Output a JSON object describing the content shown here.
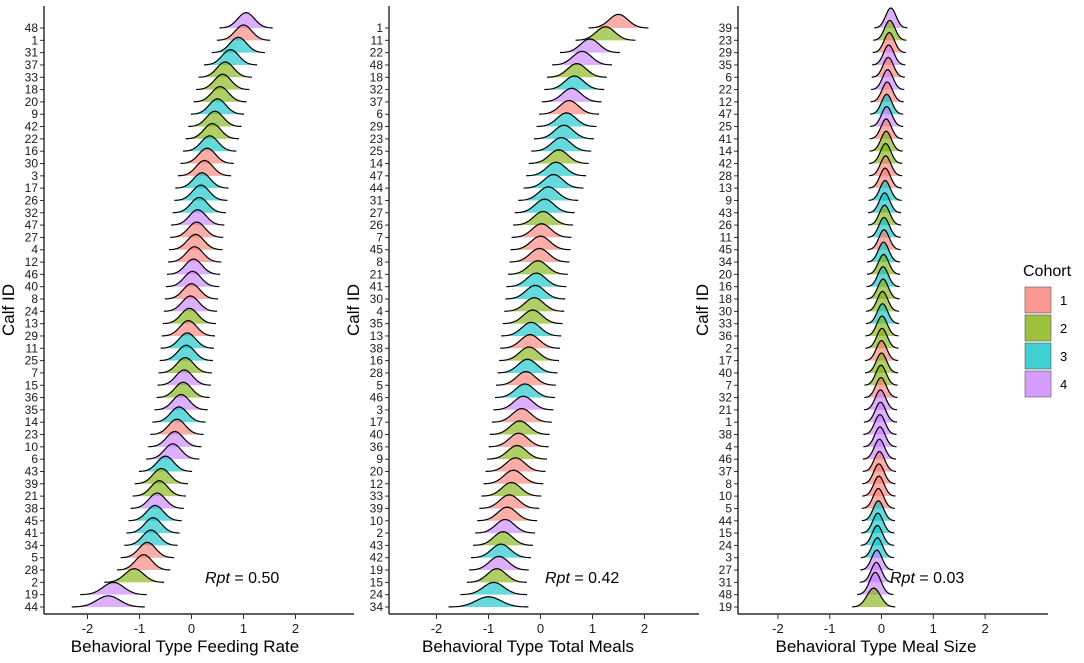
{
  "legend": {
    "title": "Cohort",
    "entries": [
      {
        "label": "1",
        "color": "#F8766D"
      },
      {
        "label": "2",
        "color": "#7CAE00"
      },
      {
        "label": "3",
        "color": "#00BFC4"
      },
      {
        "label": "4",
        "color": "#C77CFF"
      }
    ]
  },
  "chart_data": [
    {
      "type": "ridgeline",
      "xlabel": "Behavioral Type Feeding Rate",
      "ylabel": "Calf ID",
      "xlim": [
        -2.5,
        2.5
      ],
      "xticks": [
        -2,
        -1,
        0,
        1,
        2
      ],
      "annotation": {
        "label": "Rpt",
        "value": "= 0.50"
      },
      "series": [
        {
          "id": "48",
          "cohort": 4,
          "mean": 1.05,
          "sd": 0.16
        },
        {
          "id": "1",
          "cohort": 1,
          "mean": 1.0,
          "sd": 0.16
        },
        {
          "id": "31",
          "cohort": 3,
          "mean": 0.9,
          "sd": 0.16
        },
        {
          "id": "37",
          "cohort": 3,
          "mean": 0.75,
          "sd": 0.16
        },
        {
          "id": "33",
          "cohort": 2,
          "mean": 0.65,
          "sd": 0.16
        },
        {
          "id": "18",
          "cohort": 2,
          "mean": 0.6,
          "sd": 0.16
        },
        {
          "id": "20",
          "cohort": 2,
          "mean": 0.55,
          "sd": 0.16
        },
        {
          "id": "9",
          "cohort": 3,
          "mean": 0.5,
          "sd": 0.16
        },
        {
          "id": "42",
          "cohort": 2,
          "mean": 0.45,
          "sd": 0.16
        },
        {
          "id": "22",
          "cohort": 2,
          "mean": 0.4,
          "sd": 0.16
        },
        {
          "id": "16",
          "cohort": 3,
          "mean": 0.35,
          "sd": 0.16
        },
        {
          "id": "30",
          "cohort": 1,
          "mean": 0.3,
          "sd": 0.16
        },
        {
          "id": "3",
          "cohort": 1,
          "mean": 0.25,
          "sd": 0.16
        },
        {
          "id": "17",
          "cohort": 3,
          "mean": 0.2,
          "sd": 0.16
        },
        {
          "id": "26",
          "cohort": 3,
          "mean": 0.18,
          "sd": 0.16
        },
        {
          "id": "32",
          "cohort": 3,
          "mean": 0.15,
          "sd": 0.16
        },
        {
          "id": "47",
          "cohort": 4,
          "mean": 0.12,
          "sd": 0.16
        },
        {
          "id": "27",
          "cohort": 1,
          "mean": 0.1,
          "sd": 0.16
        },
        {
          "id": "4",
          "cohort": 1,
          "mean": 0.08,
          "sd": 0.16
        },
        {
          "id": "12",
          "cohort": 1,
          "mean": 0.06,
          "sd": 0.16
        },
        {
          "id": "46",
          "cohort": 4,
          "mean": 0.04,
          "sd": 0.16
        },
        {
          "id": "40",
          "cohort": 4,
          "mean": 0.02,
          "sd": 0.16
        },
        {
          "id": "8",
          "cohort": 1,
          "mean": 0.0,
          "sd": 0.16
        },
        {
          "id": "24",
          "cohort": 4,
          "mean": -0.02,
          "sd": 0.16
        },
        {
          "id": "13",
          "cohort": 2,
          "mean": -0.04,
          "sd": 0.16
        },
        {
          "id": "29",
          "cohort": 1,
          "mean": -0.06,
          "sd": 0.16
        },
        {
          "id": "11",
          "cohort": 3,
          "mean": -0.08,
          "sd": 0.16
        },
        {
          "id": "25",
          "cohort": 3,
          "mean": -0.1,
          "sd": 0.16
        },
        {
          "id": "7",
          "cohort": 2,
          "mean": -0.12,
          "sd": 0.16
        },
        {
          "id": "15",
          "cohort": 4,
          "mean": -0.14,
          "sd": 0.16
        },
        {
          "id": "36",
          "cohort": 2,
          "mean": -0.16,
          "sd": 0.16
        },
        {
          "id": "35",
          "cohort": 4,
          "mean": -0.2,
          "sd": 0.16
        },
        {
          "id": "14",
          "cohort": 3,
          "mean": -0.24,
          "sd": 0.16
        },
        {
          "id": "23",
          "cohort": 1,
          "mean": -0.28,
          "sd": 0.16
        },
        {
          "id": "10",
          "cohort": 4,
          "mean": -0.32,
          "sd": 0.16
        },
        {
          "id": "6",
          "cohort": 4,
          "mean": -0.36,
          "sd": 0.16
        },
        {
          "id": "43",
          "cohort": 3,
          "mean": -0.5,
          "sd": 0.16
        },
        {
          "id": "39",
          "cohort": 2,
          "mean": -0.58,
          "sd": 0.16
        },
        {
          "id": "21",
          "cohort": 2,
          "mean": -0.62,
          "sd": 0.16
        },
        {
          "id": "38",
          "cohort": 4,
          "mean": -0.66,
          "sd": 0.16
        },
        {
          "id": "45",
          "cohort": 3,
          "mean": -0.7,
          "sd": 0.16
        },
        {
          "id": "41",
          "cohort": 3,
          "mean": -0.74,
          "sd": 0.16
        },
        {
          "id": "34",
          "cohort": 3,
          "mean": -0.78,
          "sd": 0.16
        },
        {
          "id": "5",
          "cohort": 1,
          "mean": -0.85,
          "sd": 0.16
        },
        {
          "id": "28",
          "cohort": 1,
          "mean": -0.92,
          "sd": 0.16
        },
        {
          "id": "2",
          "cohort": 2,
          "mean": -1.1,
          "sd": 0.18
        },
        {
          "id": "19",
          "cohort": 4,
          "mean": -1.5,
          "sd": 0.2
        },
        {
          "id": "44",
          "cohort": 4,
          "mean": -1.6,
          "sd": 0.22
        }
      ]
    },
    {
      "type": "ridgeline",
      "xlabel": "Behavioral Type Total Meals",
      "ylabel": "Calf ID",
      "xlim": [
        -2.5,
        2.5
      ],
      "xticks": [
        -2,
        -1,
        0,
        1,
        2
      ],
      "annotation": {
        "label": "Rpt",
        "value": "= 0.42"
      },
      "series": [
        {
          "id": "1",
          "cohort": 1,
          "mean": 1.5,
          "sd": 0.18
        },
        {
          "id": "11",
          "cohort": 2,
          "mean": 1.25,
          "sd": 0.18
        },
        {
          "id": "22",
          "cohort": 4,
          "mean": 0.95,
          "sd": 0.18
        },
        {
          "id": "48",
          "cohort": 4,
          "mean": 0.8,
          "sd": 0.18
        },
        {
          "id": "18",
          "cohort": 2,
          "mean": 0.7,
          "sd": 0.18
        },
        {
          "id": "32",
          "cohort": 3,
          "mean": 0.65,
          "sd": 0.18
        },
        {
          "id": "37",
          "cohort": 4,
          "mean": 0.6,
          "sd": 0.18
        },
        {
          "id": "6",
          "cohort": 1,
          "mean": 0.55,
          "sd": 0.18
        },
        {
          "id": "29",
          "cohort": 3,
          "mean": 0.5,
          "sd": 0.18
        },
        {
          "id": "23",
          "cohort": 3,
          "mean": 0.45,
          "sd": 0.18
        },
        {
          "id": "25",
          "cohort": 3,
          "mean": 0.4,
          "sd": 0.18
        },
        {
          "id": "14",
          "cohort": 2,
          "mean": 0.35,
          "sd": 0.18
        },
        {
          "id": "47",
          "cohort": 3,
          "mean": 0.3,
          "sd": 0.18
        },
        {
          "id": "44",
          "cohort": 3,
          "mean": 0.25,
          "sd": 0.18
        },
        {
          "id": "31",
          "cohort": 3,
          "mean": 0.15,
          "sd": 0.18
        },
        {
          "id": "27",
          "cohort": 3,
          "mean": 0.08,
          "sd": 0.18
        },
        {
          "id": "26",
          "cohort": 2,
          "mean": 0.05,
          "sd": 0.18
        },
        {
          "id": "7",
          "cohort": 1,
          "mean": 0.02,
          "sd": 0.18
        },
        {
          "id": "45",
          "cohort": 1,
          "mean": 0.0,
          "sd": 0.18
        },
        {
          "id": "8",
          "cohort": 1,
          "mean": -0.02,
          "sd": 0.18
        },
        {
          "id": "21",
          "cohort": 2,
          "mean": -0.05,
          "sd": 0.18
        },
        {
          "id": "41",
          "cohort": 3,
          "mean": -0.08,
          "sd": 0.18
        },
        {
          "id": "30",
          "cohort": 3,
          "mean": -0.1,
          "sd": 0.18
        },
        {
          "id": "4",
          "cohort": 2,
          "mean": -0.12,
          "sd": 0.18
        },
        {
          "id": "35",
          "cohort": 2,
          "mean": -0.15,
          "sd": 0.18
        },
        {
          "id": "13",
          "cohort": 3,
          "mean": -0.18,
          "sd": 0.18
        },
        {
          "id": "38",
          "cohort": 1,
          "mean": -0.2,
          "sd": 0.18
        },
        {
          "id": "16",
          "cohort": 2,
          "mean": -0.22,
          "sd": 0.18
        },
        {
          "id": "28",
          "cohort": 3,
          "mean": -0.25,
          "sd": 0.18
        },
        {
          "id": "5",
          "cohort": 1,
          "mean": -0.28,
          "sd": 0.18
        },
        {
          "id": "46",
          "cohort": 3,
          "mean": -0.3,
          "sd": 0.18
        },
        {
          "id": "3",
          "cohort": 4,
          "mean": -0.33,
          "sd": 0.18
        },
        {
          "id": "17",
          "cohort": 1,
          "mean": -0.36,
          "sd": 0.18
        },
        {
          "id": "40",
          "cohort": 2,
          "mean": -0.4,
          "sd": 0.18
        },
        {
          "id": "36",
          "cohort": 1,
          "mean": -0.42,
          "sd": 0.18
        },
        {
          "id": "9",
          "cohort": 2,
          "mean": -0.45,
          "sd": 0.18
        },
        {
          "id": "20",
          "cohort": 1,
          "mean": -0.48,
          "sd": 0.18
        },
        {
          "id": "12",
          "cohort": 1,
          "mean": -0.52,
          "sd": 0.18
        },
        {
          "id": "33",
          "cohort": 2,
          "mean": -0.56,
          "sd": 0.18
        },
        {
          "id": "39",
          "cohort": 1,
          "mean": -0.6,
          "sd": 0.18
        },
        {
          "id": "10",
          "cohort": 1,
          "mean": -0.64,
          "sd": 0.18
        },
        {
          "id": "2",
          "cohort": 4,
          "mean": -0.68,
          "sd": 0.18
        },
        {
          "id": "43",
          "cohort": 2,
          "mean": -0.72,
          "sd": 0.18
        },
        {
          "id": "42",
          "cohort": 3,
          "mean": -0.76,
          "sd": 0.18
        },
        {
          "id": "19",
          "cohort": 4,
          "mean": -0.8,
          "sd": 0.18
        },
        {
          "id": "15",
          "cohort": 2,
          "mean": -0.84,
          "sd": 0.18
        },
        {
          "id": "24",
          "cohort": 3,
          "mean": -0.9,
          "sd": 0.2
        },
        {
          "id": "34",
          "cohort": 3,
          "mean": -1.0,
          "sd": 0.24
        }
      ]
    },
    {
      "type": "ridgeline",
      "xlabel": "Behavioral Type Meal Size",
      "ylabel": "Calf ID",
      "xlim": [
        -2.5,
        2.5
      ],
      "xticks": [
        -2,
        -1,
        0,
        1,
        2
      ],
      "annotation": {
        "label": "Rpt",
        "value": "= 0.03"
      },
      "series": [
        {
          "id": "39",
          "cohort": 4,
          "mean": 0.18,
          "sd": 0.1
        },
        {
          "id": "23",
          "cohort": 2,
          "mean": 0.16,
          "sd": 0.1
        },
        {
          "id": "29",
          "cohort": 1,
          "mean": 0.15,
          "sd": 0.1
        },
        {
          "id": "35",
          "cohort": 4,
          "mean": 0.14,
          "sd": 0.1
        },
        {
          "id": "6",
          "cohort": 1,
          "mean": 0.13,
          "sd": 0.1
        },
        {
          "id": "22",
          "cohort": 4,
          "mean": 0.12,
          "sd": 0.1
        },
        {
          "id": "12",
          "cohort": 1,
          "mean": 0.11,
          "sd": 0.1
        },
        {
          "id": "47",
          "cohort": 3,
          "mean": 0.1,
          "sd": 0.1
        },
        {
          "id": "25",
          "cohort": 4,
          "mean": 0.1,
          "sd": 0.1
        },
        {
          "id": "41",
          "cohort": 1,
          "mean": 0.09,
          "sd": 0.1
        },
        {
          "id": "14",
          "cohort": 2,
          "mean": 0.09,
          "sd": 0.1
        },
        {
          "id": "42",
          "cohort": 2,
          "mean": 0.08,
          "sd": 0.1
        },
        {
          "id": "28",
          "cohort": 1,
          "mean": 0.08,
          "sd": 0.1
        },
        {
          "id": "13",
          "cohort": 1,
          "mean": 0.07,
          "sd": 0.1
        },
        {
          "id": "9",
          "cohort": 3,
          "mean": 0.07,
          "sd": 0.1
        },
        {
          "id": "43",
          "cohort": 3,
          "mean": 0.06,
          "sd": 0.1
        },
        {
          "id": "26",
          "cohort": 2,
          "mean": 0.06,
          "sd": 0.1
        },
        {
          "id": "11",
          "cohort": 3,
          "mean": 0.05,
          "sd": 0.1
        },
        {
          "id": "45",
          "cohort": 1,
          "mean": 0.05,
          "sd": 0.1
        },
        {
          "id": "34",
          "cohort": 3,
          "mean": 0.04,
          "sd": 0.1
        },
        {
          "id": "20",
          "cohort": 2,
          "mean": 0.04,
          "sd": 0.1
        },
        {
          "id": "16",
          "cohort": 3,
          "mean": 0.03,
          "sd": 0.1
        },
        {
          "id": "18",
          "cohort": 2,
          "mean": 0.03,
          "sd": 0.1
        },
        {
          "id": "30",
          "cohort": 2,
          "mean": 0.02,
          "sd": 0.1
        },
        {
          "id": "33",
          "cohort": 3,
          "mean": 0.02,
          "sd": 0.1
        },
        {
          "id": "36",
          "cohort": 2,
          "mean": 0.01,
          "sd": 0.1
        },
        {
          "id": "2",
          "cohort": 2,
          "mean": 0.01,
          "sd": 0.1
        },
        {
          "id": "17",
          "cohort": 1,
          "mean": 0.0,
          "sd": 0.1
        },
        {
          "id": "40",
          "cohort": 2,
          "mean": 0.0,
          "sd": 0.1
        },
        {
          "id": "7",
          "cohort": 2,
          "mean": -0.01,
          "sd": 0.1
        },
        {
          "id": "32",
          "cohort": 1,
          "mean": -0.01,
          "sd": 0.1
        },
        {
          "id": "21",
          "cohort": 4,
          "mean": -0.02,
          "sd": 0.1
        },
        {
          "id": "1",
          "cohort": 4,
          "mean": -0.02,
          "sd": 0.1
        },
        {
          "id": "38",
          "cohort": 4,
          "mean": -0.03,
          "sd": 0.1
        },
        {
          "id": "4",
          "cohort": 4,
          "mean": -0.03,
          "sd": 0.1
        },
        {
          "id": "46",
          "cohort": 4,
          "mean": -0.04,
          "sd": 0.1
        },
        {
          "id": "37",
          "cohort": 1,
          "mean": -0.04,
          "sd": 0.1
        },
        {
          "id": "8",
          "cohort": 1,
          "mean": -0.05,
          "sd": 0.1
        },
        {
          "id": "10",
          "cohort": 1,
          "mean": -0.05,
          "sd": 0.1
        },
        {
          "id": "5",
          "cohort": 1,
          "mean": -0.06,
          "sd": 0.1
        },
        {
          "id": "44",
          "cohort": 3,
          "mean": -0.06,
          "sd": 0.1
        },
        {
          "id": "15",
          "cohort": 3,
          "mean": -0.07,
          "sd": 0.1
        },
        {
          "id": "24",
          "cohort": 3,
          "mean": -0.08,
          "sd": 0.1
        },
        {
          "id": "3",
          "cohort": 3,
          "mean": -0.08,
          "sd": 0.1
        },
        {
          "id": "27",
          "cohort": 4,
          "mean": -0.09,
          "sd": 0.1
        },
        {
          "id": "31",
          "cohort": 4,
          "mean": -0.1,
          "sd": 0.1
        },
        {
          "id": "48",
          "cohort": 4,
          "mean": -0.12,
          "sd": 0.11
        },
        {
          "id": "19",
          "cohort": 2,
          "mean": -0.15,
          "sd": 0.13
        }
      ]
    }
  ]
}
